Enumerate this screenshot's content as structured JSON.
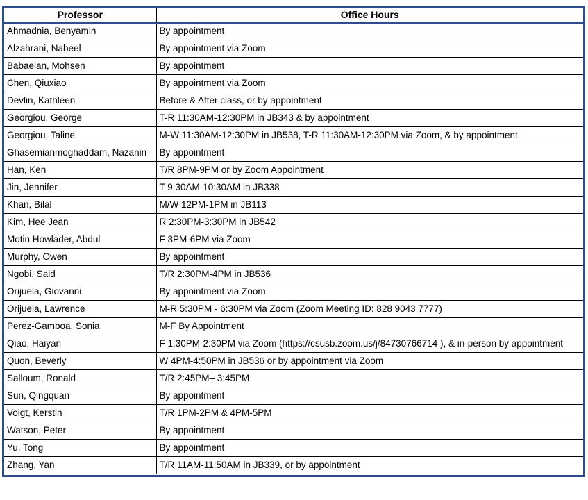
{
  "table": {
    "columns": [
      "Professor",
      "Office Hours"
    ],
    "rows": [
      [
        "Ahmadnia, Benyamin",
        "By appointment"
      ],
      [
        "Alzahrani, Nabeel",
        "By appointment via Zoom"
      ],
      [
        "Babaeian, Mohsen",
        "By appointment"
      ],
      [
        "Chen, Qiuxiao",
        "By appointment via Zoom"
      ],
      [
        "Devlin, Kathleen",
        "Before & After class, or by appointment"
      ],
      [
        "Georgiou, George",
        "T-R 11:30AM-12:30PM in JB343 & by appointment"
      ],
      [
        "Georgiou, Taline",
        "M-W 11:30AM-12:30PM in JB538, T-R 11:30AM-12:30PM via Zoom, & by appointment"
      ],
      [
        "Ghasemianmoghaddam, Nazanin",
        "By appointment"
      ],
      [
        "Han, Ken",
        "T/R 8PM-9PM or by Zoom Appointment"
      ],
      [
        "Jin, Jennifer",
        "T 9:30AM-10:30AM in JB338"
      ],
      [
        "Khan, Bilal",
        "M/W 12PM-1PM in JB113"
      ],
      [
        "Kim, Hee Jean",
        "R 2:30PM-3:30PM in JB542"
      ],
      [
        "Motin Howlader, Abdul",
        "F 3PM-6PM via Zoom"
      ],
      [
        "Murphy, Owen",
        "By appointment"
      ],
      [
        "Ngobi, Said",
        "T/R 2:30PM-4PM in JB536"
      ],
      [
        "Orijuela, Giovanni",
        "By appointment via Zoom"
      ],
      [
        "Orijuela, Lawrence",
        "M-R 5:30PM - 6:30PM via Zoom (Zoom Meeting ID: 828 9043 7777)"
      ],
      [
        "Perez-Gamboa, Sonia",
        "M-F By Appointment"
      ],
      [
        "Qiao, Haiyan",
        "F 1:30PM-2:30PM via Zoom (https://csusb.zoom.us/j/84730766714 ), & in-person by appointment"
      ],
      [
        "Quon, Beverly",
        "W 4PM-4:50PM in JB536 or by appointment via Zoom"
      ],
      [
        "Salloum, Ronald",
        "T/R 2:45PM– 3:45PM"
      ],
      [
        "Sun, Qingquan",
        "By appointment"
      ],
      [
        "Voigt, Kerstin",
        "T/R 1PM-2PM & 4PM-5PM"
      ],
      [
        "Watson, Peter",
        "By appointment"
      ],
      [
        "Yu, Tong",
        "By appointment"
      ],
      [
        "Zhang, Yan",
        "T/R 11AM-11:50AM in JB339, or by appointment"
      ]
    ]
  },
  "colors": {
    "outer_border": "#2c4c8c",
    "grid_line": "#000000",
    "text": "#000000"
  }
}
